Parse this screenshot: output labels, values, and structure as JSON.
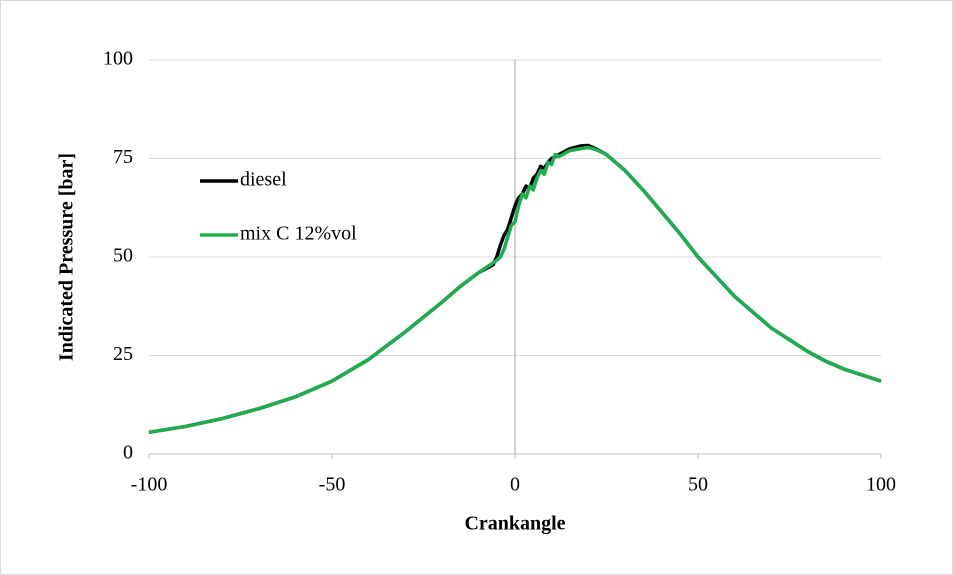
{
  "chart_data": {
    "type": "line",
    "x_label": "Crankangle",
    "y_label": "Indicated Pressure [bar]",
    "x": [
      -100,
      -90,
      -80,
      -70,
      -60,
      -50,
      -40,
      -30,
      -20,
      -15,
      -10,
      -6,
      -5,
      -4,
      -3,
      -2,
      -1,
      0,
      1,
      2,
      3,
      4,
      5,
      6,
      7,
      8,
      9,
      10,
      11,
      12,
      15,
      18,
      20,
      22,
      25,
      30,
      35,
      40,
      45,
      50,
      55,
      60,
      65,
      70,
      75,
      80,
      85,
      90,
      95,
      100
    ],
    "series": [
      {
        "name": "diesel",
        "color": "#000000",
        "values": [
          5.5,
          7,
          9,
          11.5,
          14.5,
          18.5,
          24,
          31,
          38.5,
          42.5,
          46,
          48,
          50,
          53,
          55.5,
          57,
          60,
          63,
          65,
          66,
          68,
          67.5,
          70,
          71,
          73,
          72.5,
          74,
          75,
          75.5,
          76,
          77.5,
          78.2,
          78.3,
          77.5,
          76,
          72,
          67,
          61.5,
          56,
          50,
          45,
          40,
          36,
          32,
          29,
          26,
          23.5,
          21.5,
          20,
          18.5
        ]
      },
      {
        "name": "mix C 12%vol",
        "color": "#1fad4f",
        "values": [
          5.5,
          7,
          9,
          11.5,
          14.5,
          18.5,
          24,
          31,
          38.5,
          42.5,
          46,
          48.5,
          49.2,
          50,
          52,
          55,
          58,
          59,
          63,
          66,
          65,
          68,
          67,
          70,
          72,
          71,
          74,
          73.5,
          76,
          75.5,
          77,
          77.5,
          77.8,
          77.3,
          76,
          72,
          67,
          61.5,
          56,
          50,
          45,
          40,
          36,
          32,
          29,
          26,
          23.5,
          21.5,
          20,
          18.5
        ]
      }
    ],
    "xlim": [
      -100,
      100
    ],
    "xticks": [
      -100,
      -50,
      0,
      50,
      100
    ],
    "ylim": [
      0,
      100
    ],
    "yticks": [
      0,
      25,
      50,
      75,
      100
    ],
    "grid": true,
    "legend": "left"
  }
}
